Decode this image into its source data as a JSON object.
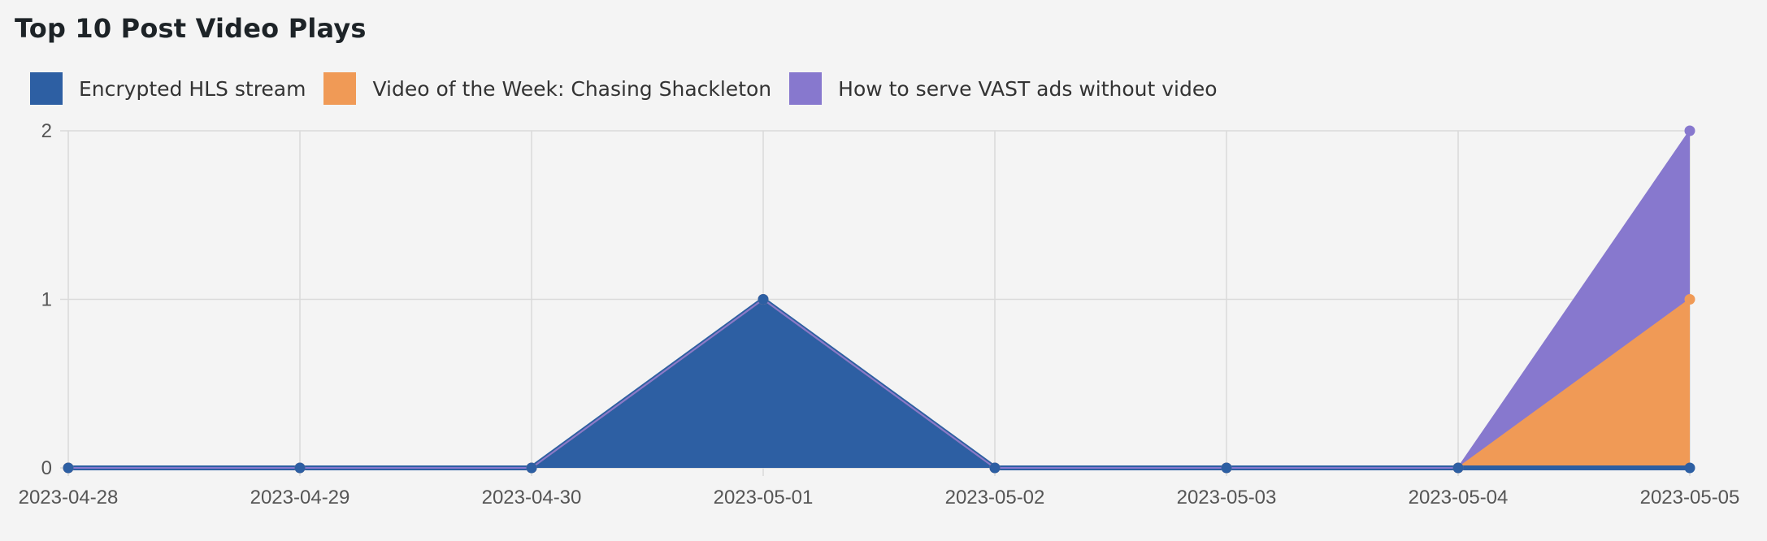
{
  "page": {
    "title": "Top 10 Post Video Plays"
  },
  "chart_data": {
    "type": "area",
    "stacked": true,
    "title": "Top 10 Post Video Plays",
    "xlabel": "",
    "ylabel": "",
    "categories": [
      "2023-04-28",
      "2023-04-29",
      "2023-04-30",
      "2023-05-01",
      "2023-05-02",
      "2023-05-03",
      "2023-05-04",
      "2023-05-05"
    ],
    "ylim": [
      0,
      2
    ],
    "yticks": [
      0,
      1,
      2
    ],
    "grid": true,
    "legend_position": "top-left",
    "series": [
      {
        "name": "Encrypted HLS stream",
        "color": "#2d5fa3",
        "values": [
          0,
          0,
          0,
          1,
          0,
          0,
          0,
          0
        ]
      },
      {
        "name": "Video of the Week: Chasing Shackleton",
        "color": "#f09a56",
        "values": [
          0,
          0,
          0,
          0,
          0,
          0,
          0,
          1
        ]
      },
      {
        "name": "How to serve VAST ads without video",
        "color": "#8778ce",
        "values": [
          0,
          0,
          0,
          0,
          0,
          0,
          0,
          1
        ]
      }
    ]
  }
}
